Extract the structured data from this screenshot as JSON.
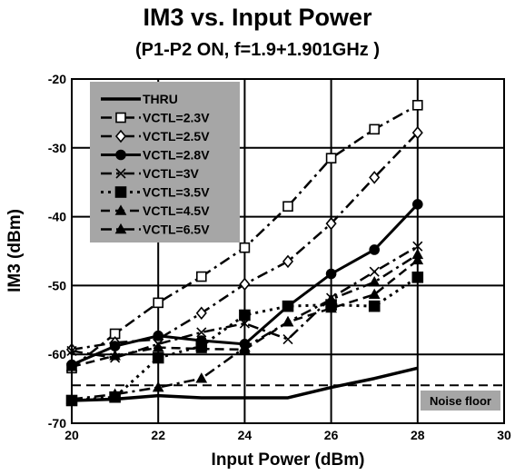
{
  "chart_data": {
    "type": "line",
    "title": "IM3 vs. Input Power",
    "subtitle": "(P1-P2 ON, f=1.9+1.901GHz )",
    "xlabel": "Input Power (dBm)",
    "ylabel": "IM3 (dBm)",
    "xlim": [
      20,
      30
    ],
    "ylim": [
      -70,
      -20
    ],
    "xticks": [
      "20",
      "22",
      "24",
      "26",
      "28",
      "30"
    ],
    "yticks": [
      "-20",
      "-30",
      "-40",
      "-50",
      "-60",
      "-70"
    ],
    "grid": true,
    "legend_position": "top-left",
    "annotation": "Noise floor",
    "noise_floor_level": -64.5,
    "series": [
      {
        "name": "THRU",
        "marker": "none",
        "dash": "solid",
        "width": 3.5,
        "x": [
          20,
          21,
          22,
          23,
          24,
          25,
          26,
          27,
          28
        ],
        "y": [
          -66.7,
          -66.5,
          -66.0,
          -66.3,
          -66.3,
          -66.3,
          -64.8,
          -63.5,
          -62.0
        ]
      },
      {
        "name": "VCTL=2.3V",
        "marker": "square-open",
        "dash": "dashdot",
        "width": 2.5,
        "x": [
          20,
          21,
          22,
          23,
          24,
          25,
          26,
          27,
          28
        ],
        "y": [
          -62.0,
          -57.0,
          -52.5,
          -48.7,
          -44.5,
          -38.5,
          -31.5,
          -27.3,
          -23.8
        ]
      },
      {
        "name": "VCTL=2.5V",
        "marker": "diamond-open",
        "dash": "dashdot",
        "width": 2.5,
        "x": [
          20,
          21,
          22,
          23,
          24,
          25,
          26,
          27,
          28
        ],
        "y": [
          -59.3,
          -58.3,
          -57.8,
          -54.0,
          -49.8,
          -46.5,
          -41.0,
          -34.3,
          -27.8
        ]
      },
      {
        "name": "VCTL=2.8V",
        "marker": "circle-filled",
        "dash": "solid",
        "width": 3,
        "x": [
          20,
          21,
          22,
          23,
          24,
          25,
          26,
          27,
          28
        ],
        "y": [
          -61.5,
          -58.8,
          -57.3,
          -58.0,
          -58.5,
          -53.0,
          -48.3,
          -44.8,
          -38.2
        ]
      },
      {
        "name": "VCTL=3V",
        "marker": "x",
        "dash": "dashdot",
        "width": 2.5,
        "x": [
          20,
          21,
          22,
          23,
          24,
          25,
          26,
          27,
          28
        ],
        "y": [
          -59.5,
          -60.5,
          -58.5,
          -56.8,
          -55.5,
          -57.8,
          -51.8,
          -48.0,
          -44.3
        ]
      },
      {
        "name": "VCTL=3.5V",
        "marker": "square-filled",
        "dash": "dotted",
        "width": 3,
        "x": [
          20,
          21,
          22,
          23,
          24,
          25,
          26,
          27,
          28
        ],
        "y": [
          -66.7,
          -66.2,
          -60.5,
          -58.8,
          -54.3,
          -53.0,
          -52.8,
          -53.0,
          -48.8
        ]
      },
      {
        "name": "VCTL=4.5V",
        "marker": "triangle-filled",
        "dash": "dashed",
        "width": 2.5,
        "x": [
          20,
          21,
          22,
          23,
          24,
          25,
          26,
          27,
          28
        ],
        "y": [
          -61.8,
          -60.2,
          -59.0,
          -59.2,
          -59.3,
          -55.3,
          -53.3,
          -51.3,
          -46.3
        ]
      },
      {
        "name": "VCTL=6.5V",
        "marker": "triangle-filled",
        "dash": "dashdot",
        "width": 2.5,
        "x": [
          20,
          21,
          22,
          23,
          24,
          25,
          26,
          27,
          28
        ],
        "y": [
          -66.5,
          -65.8,
          -64.8,
          -63.5,
          -59.0,
          -55.3,
          -52.0,
          -49.5,
          -45.5
        ]
      }
    ]
  }
}
